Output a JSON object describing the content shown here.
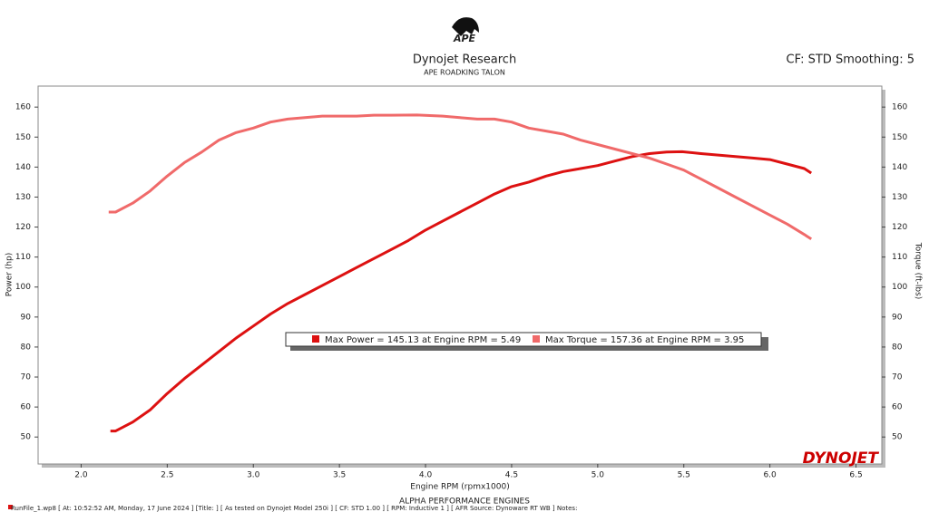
{
  "chart_data": {
    "type": "line",
    "logo": "APE",
    "title": "Dynojet Research",
    "subtitle": "APE ROADKING TALON",
    "corner_note": "CF: STD Smoothing: 5",
    "y_label": "Power (hp)",
    "y2_label": "Torque (ft-lbs)",
    "x_label": "Engine RPM (rpmx1000)",
    "footer": "ALPHA PERFORMANCE ENGINES",
    "status_line": "RunFile_1.wp8 [ At: 10:52:52 AM, Monday, 17 June 2024 ] [Title: ]  [ As tested on Dynojet Model 250i ] [ CF: STD 1.00 ] [ RPM: Inductive 1 ] [ AFR Source: Dynoware RT WB ] Notes:",
    "watermark": "DYNOJET",
    "xlim": [
      1.75,
      6.65
    ],
    "xticks": [
      {
        "value": 2,
        "label": "2.0"
      },
      2.5,
      {
        "value": 3,
        "label": "3.0"
      },
      3.5,
      {
        "value": 4,
        "label": "4.0"
      },
      4.5,
      {
        "value": 5,
        "label": "5.0"
      },
      5.5,
      {
        "value": 6,
        "label": "6.0"
      },
      6.5
    ],
    "ylim": [
      41,
      167
    ],
    "yticks": [
      50,
      60,
      70,
      80,
      90,
      100,
      110,
      120,
      130,
      140,
      150,
      160
    ],
    "y2lim": [
      41,
      167
    ],
    "y2ticks": [
      50,
      60,
      70,
      80,
      90,
      100,
      110,
      120,
      130,
      140,
      150,
      160
    ],
    "series": [
      {
        "name": "Max Power = 145.13 at Engine RPM = 5.49",
        "color": "#dd1111",
        "x": [
          2.17,
          2.2,
          2.3,
          2.4,
          2.5,
          2.6,
          2.7,
          2.8,
          2.9,
          3.0,
          3.1,
          3.2,
          3.3,
          3.4,
          3.5,
          3.6,
          3.7,
          3.8,
          3.9,
          4.0,
          4.1,
          4.2,
          4.3,
          4.4,
          4.5,
          4.6,
          4.7,
          4.8,
          4.9,
          5.0,
          5.1,
          5.2,
          5.3,
          5.4,
          5.49,
          5.6,
          5.7,
          5.8,
          5.9,
          6.0,
          6.1,
          6.2,
          6.24
        ],
        "values": [
          52,
          52,
          55,
          59,
          64.5,
          69.5,
          74,
          78.5,
          83,
          87,
          91,
          94.5,
          97.5,
          100.5,
          103.5,
          106.5,
          109.5,
          112.5,
          115.5,
          119,
          122,
          125,
          128,
          131,
          133.5,
          135,
          137,
          138.5,
          139.5,
          140.5,
          142,
          143.5,
          144.5,
          145,
          145.13,
          144.5,
          144,
          143.5,
          143,
          142.5,
          141,
          139.5,
          138
        ]
      },
      {
        "name": "Max Torque = 157.36 at Engine RPM = 3.95",
        "color": "#f06a6a",
        "axis": "y2",
        "x": [
          2.16,
          2.2,
          2.3,
          2.4,
          2.5,
          2.6,
          2.7,
          2.8,
          2.9,
          3.0,
          3.1,
          3.2,
          3.3,
          3.4,
          3.5,
          3.6,
          3.7,
          3.8,
          3.95,
          4.1,
          4.2,
          4.3,
          4.4,
          4.5,
          4.6,
          4.7,
          4.8,
          4.9,
          5.0,
          5.1,
          5.2,
          5.3,
          5.4,
          5.5,
          5.6,
          5.7,
          5.8,
          5.9,
          6.0,
          6.1,
          6.2,
          6.24
        ],
        "values": [
          125,
          125,
          128,
          132,
          137,
          141.5,
          145,
          149,
          151.5,
          153,
          155,
          156,
          156.5,
          157,
          157,
          157,
          157.3,
          157.3,
          157.36,
          157,
          156.5,
          156,
          156,
          155,
          153,
          152,
          151,
          149,
          147.5,
          146,
          144.5,
          143,
          141,
          139,
          136,
          133,
          130,
          127,
          124,
          121,
          117.5,
          116
        ]
      }
    ]
  }
}
